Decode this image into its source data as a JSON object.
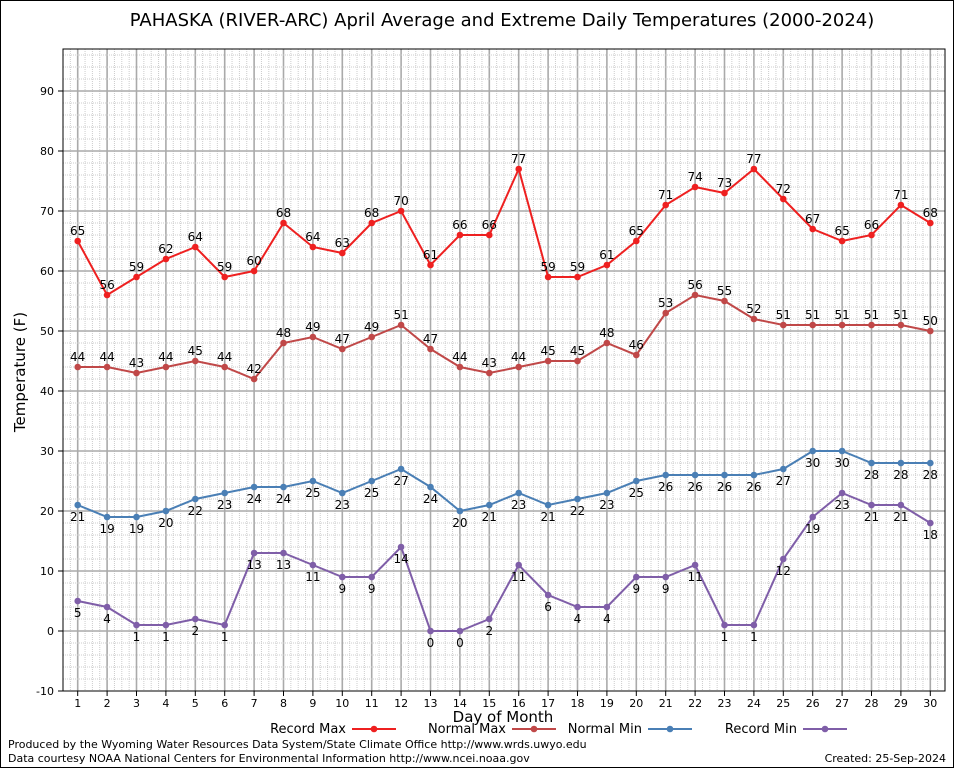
{
  "chart_data": {
    "type": "line",
    "title": "PAHASKA (RIVER-ARC) April Average and Extreme Daily Temperatures (2000-2024)",
    "xlabel": "Day of Month",
    "ylabel": "Temperature (F)",
    "xlim": [
      0.5,
      30.5
    ],
    "ylim": [
      -10,
      97
    ],
    "yticks": [
      -10,
      0,
      10,
      20,
      30,
      40,
      50,
      60,
      70,
      80,
      90
    ],
    "x": [
      1,
      2,
      3,
      4,
      5,
      6,
      7,
      8,
      9,
      10,
      11,
      12,
      13,
      14,
      15,
      16,
      17,
      18,
      19,
      20,
      21,
      22,
      23,
      24,
      25,
      26,
      27,
      28,
      29,
      30
    ],
    "grid": true,
    "legend_position": "bottom",
    "series": [
      {
        "name": "Record Max",
        "color": "#ee2020",
        "label_pos": "above",
        "values": [
          65,
          56,
          59,
          62,
          64,
          59,
          60,
          68,
          64,
          63,
          68,
          70,
          61,
          66,
          66,
          77,
          59,
          59,
          61,
          65,
          71,
          74,
          73,
          77,
          72,
          67,
          65,
          66,
          71,
          68
        ]
      },
      {
        "name": "Normal Max",
        "color": "#c04848",
        "label_pos": "above",
        "values": [
          44,
          44,
          43,
          44,
          45,
          44,
          42,
          48,
          49,
          47,
          49,
          51,
          47,
          44,
          43,
          44,
          45,
          45,
          48,
          46,
          53,
          56,
          55,
          52,
          51,
          51,
          51,
          51,
          51,
          50
        ]
      },
      {
        "name": "Normal Min",
        "color": "#4a7fb5",
        "label_pos": "below",
        "values": [
          21,
          19,
          19,
          20,
          22,
          23,
          24,
          24,
          25,
          23,
          25,
          27,
          24,
          20,
          21,
          23,
          21,
          22,
          23,
          25,
          26,
          26,
          26,
          26,
          27,
          30,
          30,
          28,
          28,
          28
        ]
      },
      {
        "name": "Record Min",
        "color": "#7f5ea8",
        "label_pos": "below",
        "values": [
          5,
          4,
          1,
          1,
          2,
          1,
          13,
          13,
          11,
          9,
          9,
          14,
          0,
          0,
          2,
          11,
          6,
          4,
          4,
          9,
          9,
          11,
          1,
          1,
          12,
          19,
          23,
          21,
          21,
          18
        ]
      }
    ]
  },
  "footer": {
    "credit_line1": "Produced by the Wyoming Water Resources Data System/State Climate Office http://www.wrds.uwyo.edu",
    "credit_line2": "Data courtesy NOAA National Centers for Environmental Information http://www.ncei.noaa.gov",
    "created": "Created:  25-Sep-2024"
  }
}
